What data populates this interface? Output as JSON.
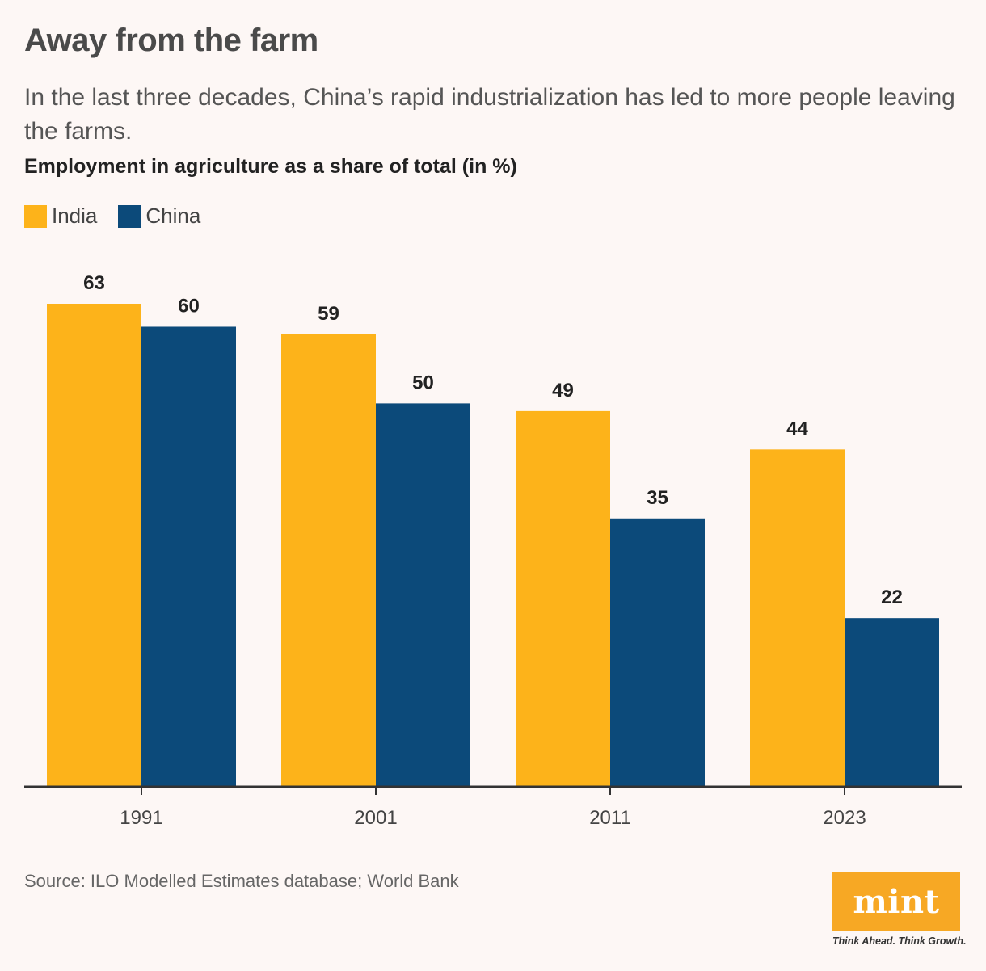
{
  "header": {
    "title": "Away from the farm",
    "subtitle": "In the last three decades, China’s rapid industrialization has led to more people leaving the farms."
  },
  "chart_heading": "Employment in agriculture as a share of total (in %)",
  "legend": [
    {
      "label": "India",
      "color": "#fdb31a"
    },
    {
      "label": "China",
      "color": "#0c4a7a"
    }
  ],
  "chart_data": {
    "type": "bar",
    "title": "Employment in agriculture as a share of total (in %)",
    "categories": [
      "1991",
      "2001",
      "2011",
      "2023"
    ],
    "series": [
      {
        "name": "India",
        "values": [
          63,
          59,
          49,
          44
        ],
        "color": "#fdb31a"
      },
      {
        "name": "China",
        "values": [
          60,
          50,
          35,
          22
        ],
        "color": "#0c4a7a"
      }
    ],
    "xlabel": "",
    "ylabel": "",
    "ylim": [
      0,
      63
    ],
    "grid": false,
    "legend": "top-left"
  },
  "footer": {
    "source": "Source: ILO Modelled Estimates database; World Bank",
    "logo": "mint",
    "tagline": "Think Ahead. Think Growth."
  }
}
